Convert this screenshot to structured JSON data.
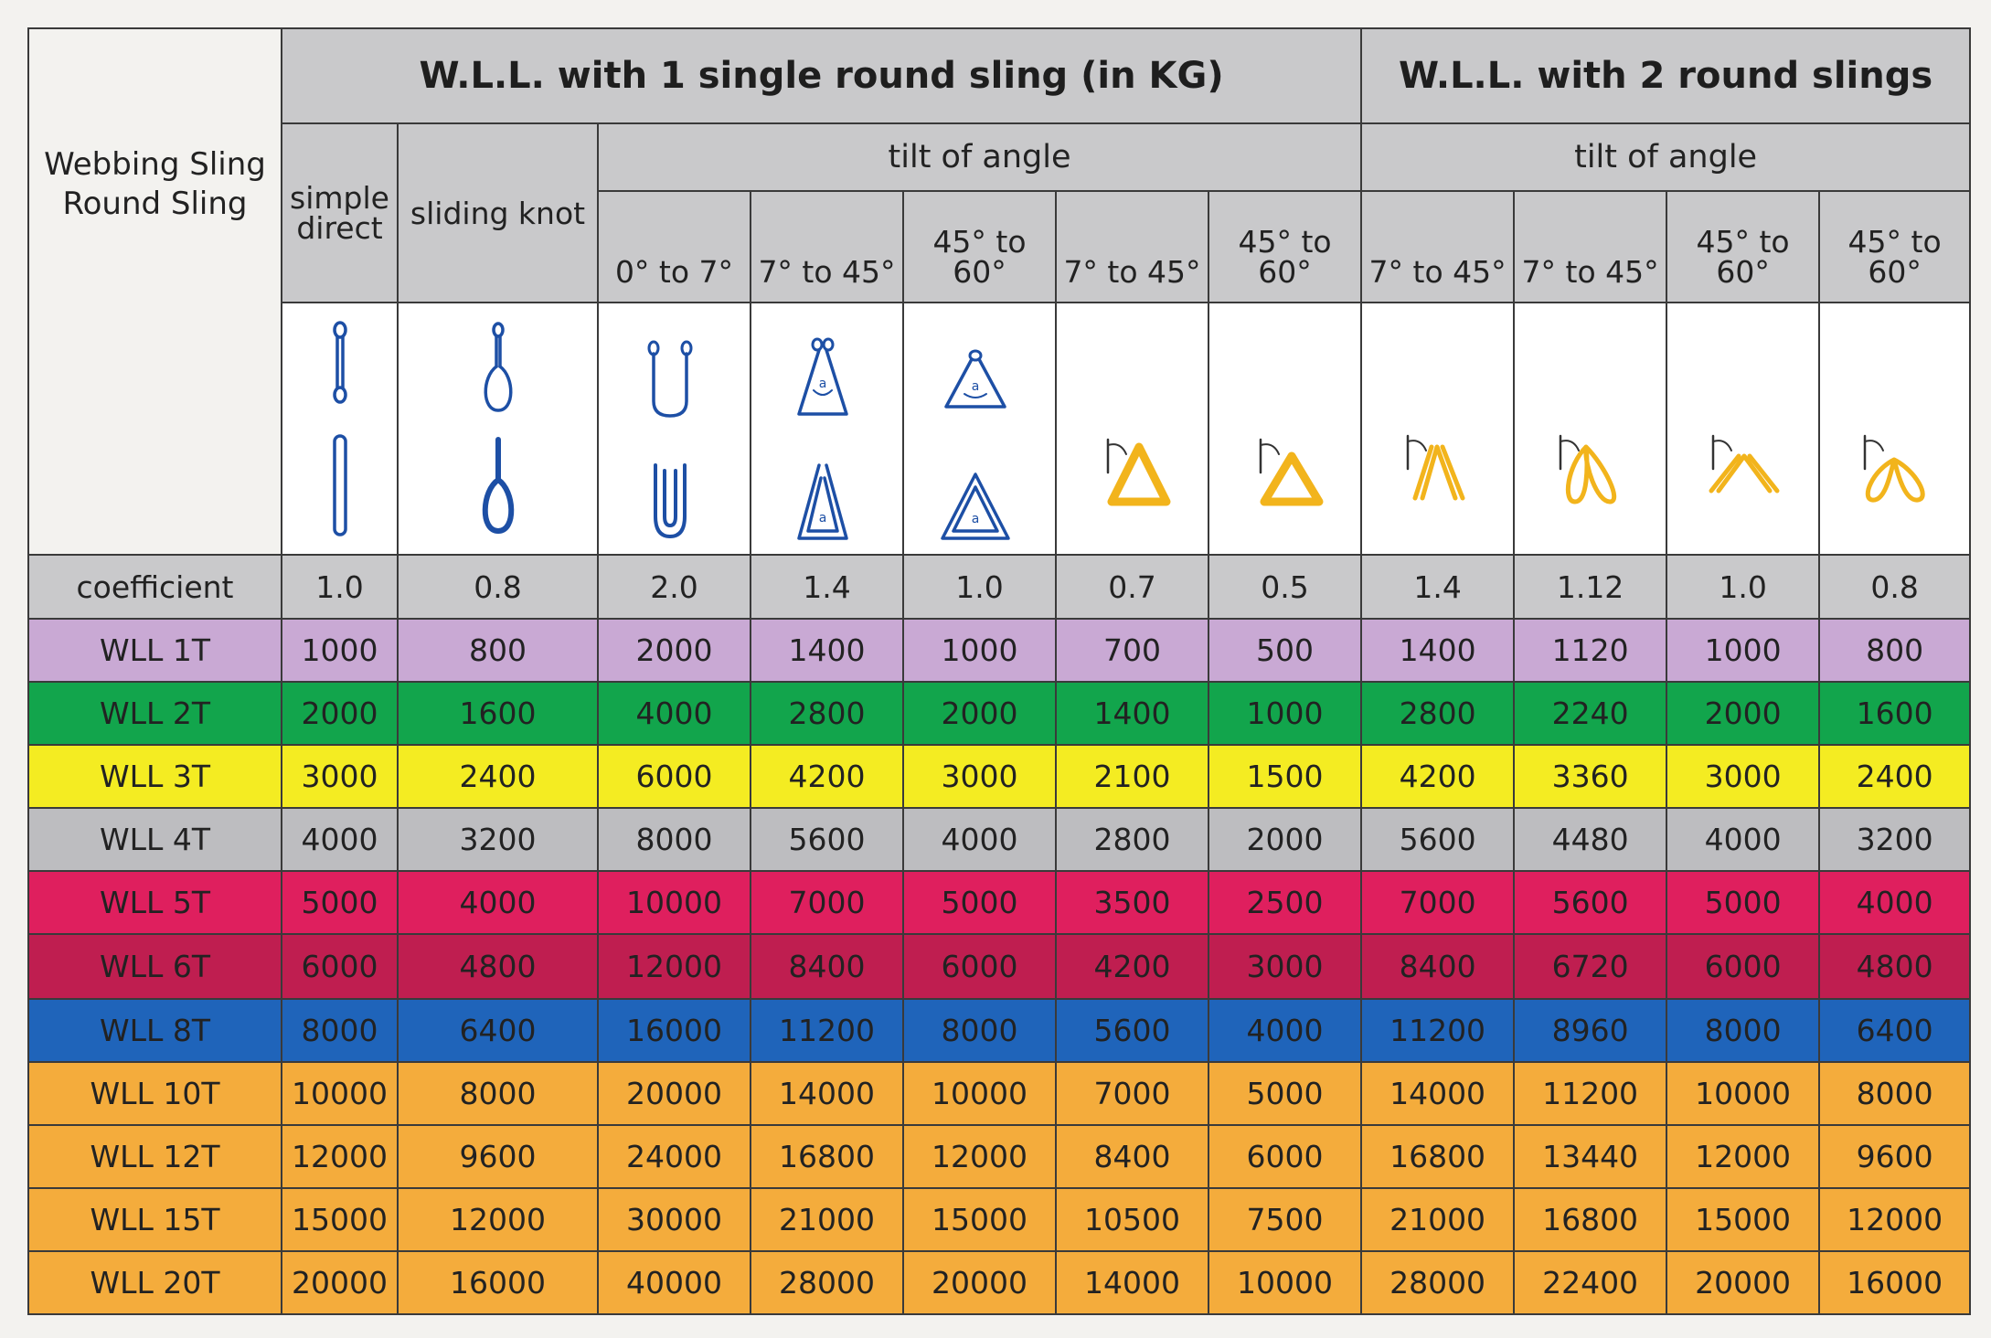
{
  "header": {
    "corner_line1": "Webbing Sling",
    "corner_line2": "Round Sling",
    "group_single": "W.L.L. with 1 single round sling (in KG)",
    "group_double": "W.L.L. with 2 round slings",
    "tilt_single": "tilt of angle",
    "tilt_double": "tilt of angle",
    "col_simple_line1": "simple",
    "col_simple_line2": "direct",
    "col_sliding": "sliding knot",
    "angle_cols": [
      "0° to 7°",
      "7° to 45°",
      "45° to 60°",
      "7° to 45°",
      "45° to 60°",
      "7° to 45°",
      "7° to 45°",
      "45° to 60°",
      "45° to 60°"
    ]
  },
  "diagram_labels": {
    "angle_symbol": "a"
  },
  "icons": [
    "single-vertical-sling-icon",
    "choke-knot-sling-icon",
    "basket-u-sling-icon",
    "basket-triangle-45-icon",
    "basket-triangle-60-icon",
    "yellow-triangle-45-icon",
    "yellow-triangle-60-icon",
    "two-slings-45-icon",
    "two-loop-slings-45-icon",
    "two-slings-60-icon",
    "two-loop-slings-60-icon"
  ],
  "colors": {
    "sling_blue": "#1d4fa5",
    "sling_yellow": "#f2b41c"
  },
  "coefficient": {
    "label": "coefficient",
    "values": [
      "1.0",
      "0.8",
      "2.0",
      "1.4",
      "1.0",
      "0.7",
      "0.5",
      "1.4",
      "1.12",
      "1.0",
      "0.8"
    ]
  },
  "rows": [
    {
      "label": "WLL 1T",
      "color": "#c9a9d4",
      "values": [
        "1000",
        "800",
        "2000",
        "1400",
        "1000",
        "700",
        "500",
        "1400",
        "1120",
        "1000",
        "800"
      ]
    },
    {
      "label": "WLL 2T",
      "color": "#12a54c",
      "values": [
        "2000",
        "1600",
        "4000",
        "2800",
        "2000",
        "1400",
        "1000",
        "2800",
        "2240",
        "2000",
        "1600"
      ]
    },
    {
      "label": "WLL 3T",
      "color": "#f4ec22",
      "values": [
        "3000",
        "2400",
        "6000",
        "4200",
        "3000",
        "2100",
        "1500",
        "4200",
        "3360",
        "3000",
        "2400"
      ]
    },
    {
      "label": "WLL 4T",
      "color": "#bdbdc0",
      "values": [
        "4000",
        "3200",
        "8000",
        "5600",
        "4000",
        "2800",
        "2000",
        "5600",
        "4480",
        "4000",
        "3200"
      ]
    },
    {
      "label": "WLL 5T",
      "color": "#df1f5e",
      "values": [
        "5000",
        "4000",
        "10000",
        "7000",
        "5000",
        "3500",
        "2500",
        "7000",
        "5600",
        "5000",
        "4000"
      ]
    },
    {
      "label": "WLL 6T",
      "color": "#bf1e50",
      "values": [
        "6000",
        "4800",
        "12000",
        "8400",
        "6000",
        "4200",
        "3000",
        "8400",
        "6720",
        "6000",
        "4800"
      ]
    },
    {
      "label": "WLL 8T",
      "color": "#1f64ba",
      "values": [
        "8000",
        "6400",
        "16000",
        "11200",
        "8000",
        "5600",
        "4000",
        "11200",
        "8960",
        "8000",
        "6400"
      ]
    },
    {
      "label": "WLL 10T",
      "color": "#f4ac3c",
      "values": [
        "10000",
        "8000",
        "20000",
        "14000",
        "10000",
        "7000",
        "5000",
        "14000",
        "11200",
        "10000",
        "8000"
      ]
    },
    {
      "label": "WLL 12T",
      "color": "#f4ac3c",
      "values": [
        "12000",
        "9600",
        "24000",
        "16800",
        "12000",
        "8400",
        "6000",
        "16800",
        "13440",
        "12000",
        "9600"
      ]
    },
    {
      "label": "WLL 15T",
      "color": "#f4ac3c",
      "values": [
        "15000",
        "12000",
        "30000",
        "21000",
        "15000",
        "10500",
        "7500",
        "21000",
        "16800",
        "15000",
        "12000"
      ]
    },
    {
      "label": "WLL 20T",
      "color": "#f4ac3c",
      "values": [
        "20000",
        "16000",
        "40000",
        "28000",
        "20000",
        "14000",
        "10000",
        "28000",
        "22400",
        "20000",
        "16000"
      ]
    }
  ]
}
